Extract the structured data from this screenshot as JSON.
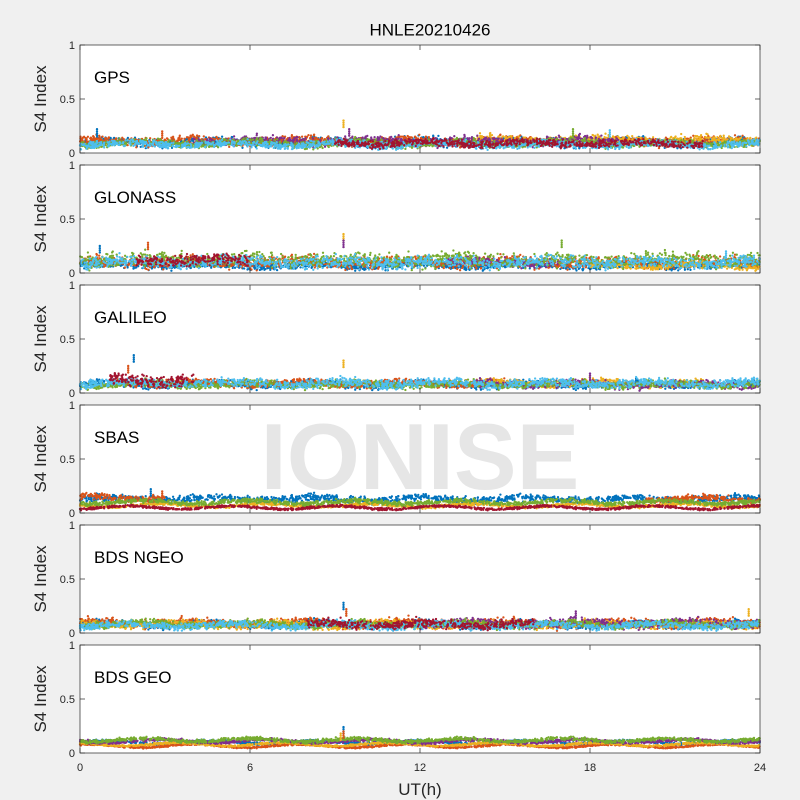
{
  "watermark": "IONISE",
  "chart_data": {
    "type": "scatter",
    "title": "HNLE20210426",
    "xlabel": "UT(h)",
    "ylabel": "S4 Index",
    "xlim": [
      0,
      24
    ],
    "ylim": [
      0,
      1
    ],
    "xticks": [
      0,
      6,
      12,
      18,
      24
    ],
    "yticks": [
      0,
      0.5,
      1
    ],
    "xtick_labels": [
      "0",
      "6",
      "12",
      "18",
      "24"
    ],
    "ytick_labels": [
      "0",
      "0.5",
      "1"
    ],
    "grid": false,
    "colors": [
      "#0072bd",
      "#d95319",
      "#edb120",
      "#7e2f8e",
      "#77ac30",
      "#4dbeee",
      "#a2142f"
    ],
    "panels": [
      {
        "label": "GPS",
        "series": [
          {
            "color": "#0072bd",
            "base": 0.1,
            "spread": 0.03,
            "x": [
              0,
              24
            ]
          },
          {
            "color": "#d95319",
            "base": 0.11,
            "spread": 0.03,
            "x": [
              0,
              24
            ]
          },
          {
            "color": "#edb120",
            "base": 0.12,
            "spread": 0.03,
            "x": [
              14,
              24
            ]
          },
          {
            "color": "#7e2f8e",
            "base": 0.11,
            "spread": 0.03,
            "x": [
              4,
              19
            ]
          },
          {
            "color": "#77ac30",
            "base": 0.09,
            "spread": 0.025,
            "x": [
              0,
              24
            ]
          },
          {
            "color": "#4dbeee",
            "base": 0.08,
            "spread": 0.025,
            "x": [
              0,
              24
            ]
          },
          {
            "color": "#a2142f",
            "base": 0.09,
            "spread": 0.025,
            "x": [
              9,
              22
            ]
          }
        ],
        "spikes": [
          [
            0.6,
            0.22
          ],
          [
            2.9,
            0.2
          ],
          [
            9.3,
            0.3
          ],
          [
            9.5,
            0.22
          ],
          [
            17.4,
            0.22
          ],
          [
            18.7,
            0.21
          ]
        ]
      },
      {
        "label": "GLONASS",
        "series": [
          {
            "color": "#0072bd",
            "base": 0.07,
            "spread": 0.025,
            "x": [
              0,
              24
            ]
          },
          {
            "color": "#d95319",
            "base": 0.1,
            "spread": 0.04,
            "x": [
              0,
              24
            ]
          },
          {
            "color": "#edb120",
            "base": 0.07,
            "spread": 0.025,
            "x": [
              18,
              24
            ]
          },
          {
            "color": "#7e2f8e",
            "base": 0.1,
            "spread": 0.03,
            "x": [
              13,
              17
            ]
          },
          {
            "color": "#77ac30",
            "base": 0.12,
            "spread": 0.05,
            "x": [
              0,
              24
            ]
          },
          {
            "color": "#4dbeee",
            "base": 0.1,
            "spread": 0.04,
            "x": [
              0,
              24
            ]
          },
          {
            "color": "#a2142f",
            "base": 0.12,
            "spread": 0.04,
            "x": [
              2,
              6
            ]
          }
        ],
        "spikes": [
          [
            0.7,
            0.25
          ],
          [
            2.4,
            0.28
          ],
          [
            9.3,
            0.36
          ],
          [
            9.3,
            0.3
          ],
          [
            17.0,
            0.3
          ],
          [
            22.8,
            0.2
          ]
        ]
      },
      {
        "label": "GALILEO",
        "series": [
          {
            "color": "#0072bd",
            "base": 0.08,
            "spread": 0.025,
            "x": [
              0,
              24
            ]
          },
          {
            "color": "#d95319",
            "base": 0.09,
            "spread": 0.025,
            "x": [
              1,
              15
            ]
          },
          {
            "color": "#edb120",
            "base": 0.09,
            "spread": 0.025,
            "x": [
              14,
              22
            ]
          },
          {
            "color": "#7e2f8e",
            "base": 0.08,
            "spread": 0.025,
            "x": [
              14,
              24
            ]
          },
          {
            "color": "#77ac30",
            "base": 0.08,
            "spread": 0.025,
            "x": [
              0,
              24
            ]
          },
          {
            "color": "#4dbeee",
            "base": 0.09,
            "spread": 0.03,
            "x": [
              0,
              24
            ]
          },
          {
            "color": "#a2142f",
            "base": 0.12,
            "spread": 0.04,
            "x": [
              1,
              4
            ]
          }
        ],
        "spikes": [
          [
            1.9,
            0.35
          ],
          [
            1.7,
            0.25
          ],
          [
            9.3,
            0.3
          ],
          [
            18.0,
            0.18
          ]
        ]
      },
      {
        "label": "SBAS",
        "series": [
          {
            "color": "#0072bd",
            "base": 0.13,
            "spread": 0.025,
            "x": [
              0,
              24
            ]
          },
          {
            "color": "#d95319",
            "base": 0.14,
            "spread": 0.025,
            "x": [
              0,
              3
            ]
          },
          {
            "color": "#d95319",
            "base": 0.13,
            "spread": 0.02,
            "x": [
              20,
              24
            ]
          },
          {
            "color": "#edb120",
            "base": 0.07,
            "spread": 0.01,
            "x": [
              0,
              24
            ]
          },
          {
            "color": "#77ac30",
            "base": 0.1,
            "spread": 0.015,
            "x": [
              0,
              24
            ]
          },
          {
            "color": "#a2142f",
            "base": 0.05,
            "spread": 0.008,
            "x": [
              0,
              24
            ]
          }
        ],
        "spikes": [
          [
            2.5,
            0.22
          ],
          [
            2.9,
            0.2
          ]
        ]
      },
      {
        "label": "BDS NGEO",
        "series": [
          {
            "color": "#0072bd",
            "base": 0.08,
            "spread": 0.025,
            "x": [
              0,
              24
            ]
          },
          {
            "color": "#d95319",
            "base": 0.09,
            "spread": 0.03,
            "x": [
              0,
              24
            ]
          },
          {
            "color": "#edb120",
            "base": 0.08,
            "spread": 0.025,
            "x": [
              0,
              24
            ]
          },
          {
            "color": "#7e2f8e",
            "base": 0.09,
            "spread": 0.03,
            "x": [
              12,
              24
            ]
          },
          {
            "color": "#77ac30",
            "base": 0.08,
            "spread": 0.025,
            "x": [
              0,
              24
            ]
          },
          {
            "color": "#4dbeee",
            "base": 0.07,
            "spread": 0.025,
            "x": [
              0,
              24
            ]
          },
          {
            "color": "#a2142f",
            "base": 0.08,
            "spread": 0.03,
            "x": [
              8,
              16
            ]
          }
        ],
        "spikes": [
          [
            9.3,
            0.28
          ],
          [
            9.4,
            0.22
          ],
          [
            23.6,
            0.22
          ],
          [
            17.5,
            0.2
          ]
        ]
      },
      {
        "label": "BDS GEO",
        "series": [
          {
            "color": "#0072bd",
            "base": 0.1,
            "spread": 0.008,
            "x": [
              0,
              24
            ]
          },
          {
            "color": "#d95319",
            "base": 0.065,
            "spread": 0.006,
            "x": [
              0,
              24
            ]
          },
          {
            "color": "#edb120",
            "base": 0.08,
            "spread": 0.006,
            "x": [
              0,
              24
            ]
          },
          {
            "color": "#7e2f8e",
            "base": 0.11,
            "spread": 0.01,
            "x": [
              0,
              24
            ]
          },
          {
            "color": "#77ac30",
            "base": 0.12,
            "spread": 0.012,
            "x": [
              0,
              24
            ]
          }
        ],
        "spikes": [
          [
            9.3,
            0.24
          ],
          [
            9.3,
            0.2
          ],
          [
            9.2,
            0.18
          ]
        ]
      }
    ]
  }
}
